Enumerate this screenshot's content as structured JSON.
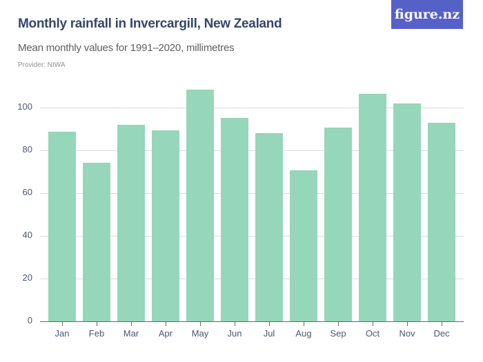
{
  "header": {
    "title": "Monthly rainfall in Invercargill, New Zealand",
    "subtitle": "Mean monthly values for 1991–2020, millimetres",
    "provider": "Provider: NIWA",
    "logo": "figure.nz"
  },
  "colors": {
    "bar": "#96d6bb",
    "title": "#34476a",
    "logo_bg": "#5661c8",
    "gridline": "#d9d9d9",
    "axis": "#666666"
  },
  "chart_data": {
    "type": "bar",
    "title": "Monthly rainfall in Invercargill, New Zealand",
    "subtitle": "Mean monthly values for 1991–2020, millimetres",
    "xlabel": "",
    "ylabel": "",
    "categories": [
      "Jan",
      "Feb",
      "Mar",
      "Apr",
      "May",
      "Jun",
      "Jul",
      "Aug",
      "Sep",
      "Oct",
      "Nov",
      "Dec"
    ],
    "values": [
      88.7,
      74.2,
      91.8,
      89.5,
      108.4,
      95.2,
      88.1,
      70.5,
      90.5,
      106.3,
      101.8,
      92.9
    ],
    "yticks": [
      0,
      20,
      40,
      60,
      80,
      100
    ],
    "ylim": [
      0,
      110
    ],
    "grid": true,
    "legend": null
  }
}
